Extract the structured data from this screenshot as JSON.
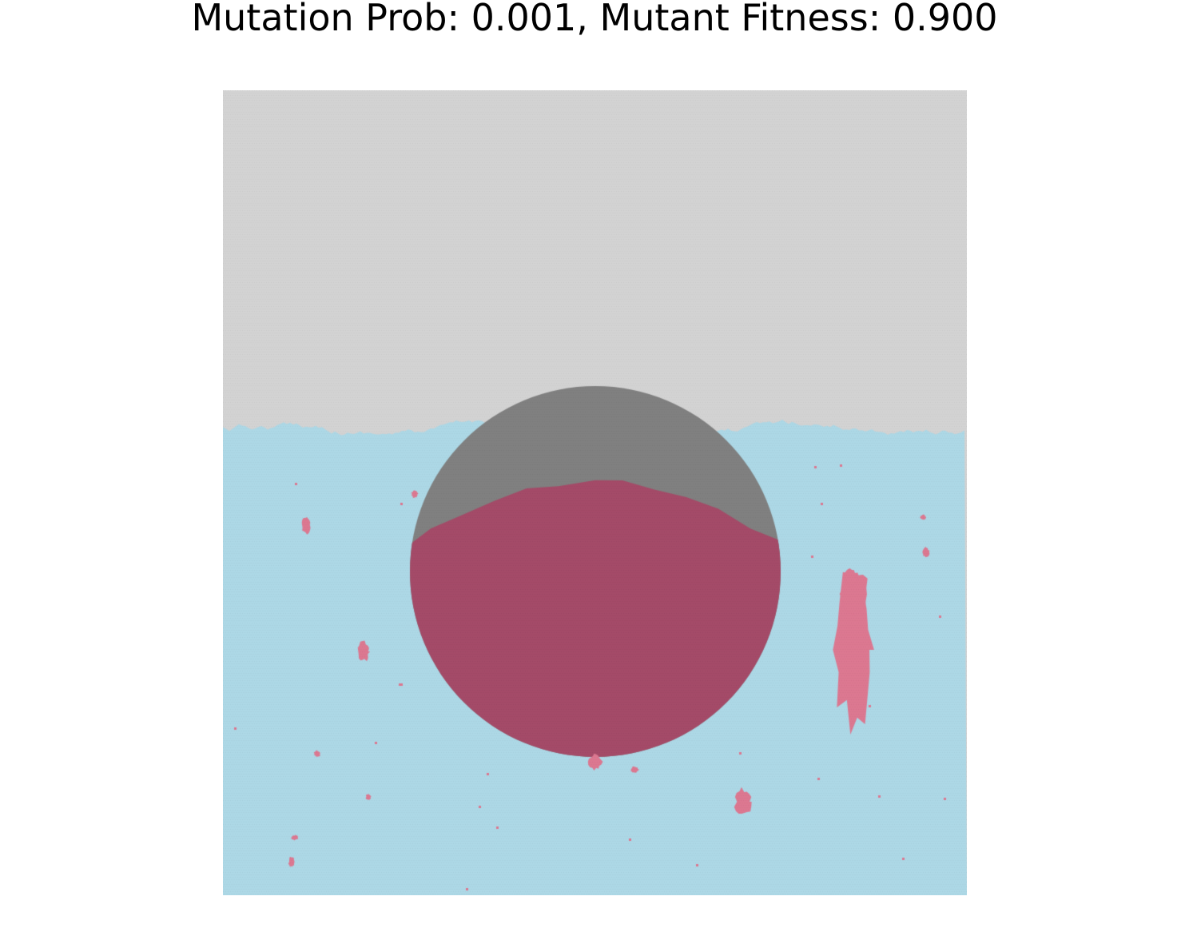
{
  "figure": {
    "title": "Mutation Prob: 0.001, Mutant Fitness: 0.900"
  },
  "colors": {
    "background": "#ffffff",
    "empty_region": "#d3d3d3",
    "wildtype": "#add8e6",
    "mutant": "#dc7891",
    "obstacle": "#808080",
    "mutant_in_obstacle": "#a44b68"
  }
}
